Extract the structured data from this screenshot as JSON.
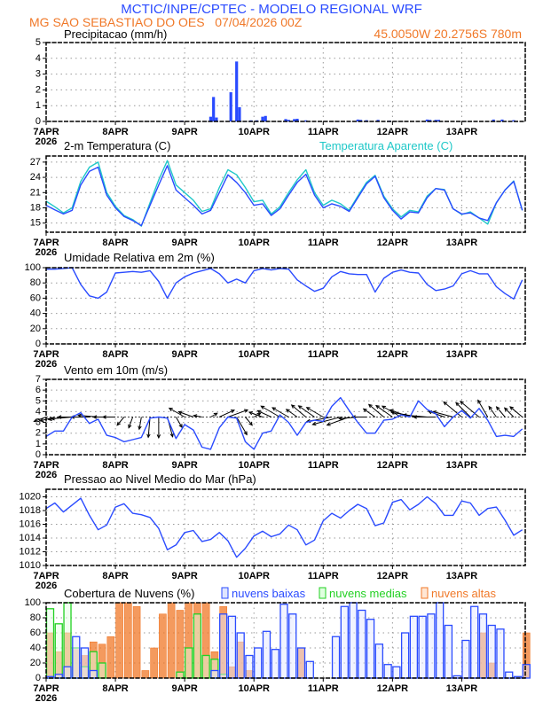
{
  "header": {
    "title": "MCTIC/INPE/CPTEC - MODELO REGIONAL WRF",
    "location_run": "MG SAO SEBASTIAO DO OES   07/04/2026 00Z",
    "coords": "45.0050W 20.2756S 780m"
  },
  "x_axis": {
    "year": "2026",
    "day_labels": [
      "7APR",
      "8APR",
      "9APR",
      "10APR",
      "11APR",
      "12APR",
      "13APR"
    ],
    "hours_range": [
      0,
      166
    ]
  },
  "colors": {
    "blue": "#2a4bff",
    "cyan": "#1fc8c8",
    "green": "#22d022",
    "orange": "#f07828"
  },
  "chart_data": [
    {
      "type": "bar",
      "title": "Precipitacao (mm/h)",
      "ylim": [
        0,
        5
      ],
      "yticks": [
        0,
        1,
        2,
        3,
        4,
        5
      ],
      "x_hours": [
        21,
        43,
        45,
        47,
        57,
        58,
        59,
        64,
        66,
        67,
        71,
        73,
        75,
        76,
        83,
        84,
        86,
        87,
        90,
        108,
        109,
        111,
        115,
        119,
        132,
        133,
        135,
        136,
        155,
        158,
        162
      ],
      "values": [
        0.02,
        0.03,
        0.05,
        0.05,
        0.3,
        1.55,
        0.25,
        1.85,
        3.8,
        0.9,
        0.07,
        0.07,
        0.3,
        0.35,
        0.15,
        0.1,
        0.15,
        0.17,
        0.07,
        0.12,
        0.1,
        0.08,
        0.1,
        0.05,
        0.12,
        0.1,
        0.1,
        0.1,
        0.12,
        0.12,
        0.08
      ]
    },
    {
      "type": "line",
      "title": "2-m Temperatura (C)",
      "legend_right": "Temperatura Aparente (C)",
      "ylim": [
        13.2,
        28.2
      ],
      "yticks": [
        15,
        18,
        21,
        24,
        27
      ],
      "x_step_hours": 3,
      "series": [
        {
          "name": "Temperatura Aparente (C)",
          "color": "cyan",
          "values": [
            19.3,
            18.2,
            17.0,
            18.0,
            23.2,
            26.0,
            27.0,
            21.0,
            18.3,
            16.5,
            15.7,
            14.4,
            19.0,
            23.5,
            27.3,
            22.5,
            21.0,
            19.5,
            17.3,
            17.8,
            22.0,
            25.5,
            24.5,
            22.0,
            19.2,
            19.5,
            16.8,
            18.2,
            21.0,
            23.5,
            25.5,
            21.0,
            18.5,
            19.5,
            18.8,
            17.5,
            20.3,
            23.0,
            24.4,
            20.3,
            17.8,
            16.2,
            17.5,
            17.2,
            20.3,
            21.8,
            21.6,
            17.8,
            16.7,
            17.2,
            16.0,
            14.8,
            19.0,
            21.5,
            23.3,
            17.5
          ]
        },
        {
          "name": "2-m Temperatura (C)",
          "color": "blue",
          "values": [
            18.5,
            17.6,
            16.8,
            17.5,
            22.5,
            25.2,
            26.0,
            20.5,
            18.0,
            16.3,
            15.5,
            14.5,
            18.5,
            22.5,
            26.3,
            21.5,
            20.0,
            18.5,
            16.8,
            17.5,
            21.0,
            24.5,
            23.0,
            21.0,
            18.5,
            18.8,
            16.5,
            17.8,
            20.5,
            23.0,
            24.6,
            20.5,
            18.0,
            18.8,
            18.3,
            17.3,
            20.0,
            22.7,
            24.2,
            20.0,
            17.5,
            15.8,
            17.2,
            17.0,
            20.0,
            21.8,
            21.5,
            17.8,
            16.8,
            17.0,
            16.0,
            15.5,
            19.0,
            21.5,
            23.2,
            17.5
          ]
        }
      ]
    },
    {
      "type": "line",
      "title": "Umidade Relativa em 2m (%)",
      "ylim": [
        0,
        100
      ],
      "yticks": [
        0,
        20,
        40,
        60,
        80,
        100
      ],
      "x_step_hours": 3,
      "series": [
        {
          "name": "Umidade Relativa",
          "color": "blue",
          "values": [
            98,
            98,
            99,
            100,
            78,
            63,
            60,
            68,
            93,
            94,
            95,
            94,
            96,
            82,
            60,
            80,
            88,
            93,
            96,
            99,
            92,
            80,
            85,
            80,
            96,
            99,
            97,
            99,
            98,
            84,
            76,
            69,
            73,
            88,
            95,
            92,
            91,
            91,
            68,
            86,
            94,
            97,
            94,
            93,
            78,
            70,
            72,
            76,
            92,
            96,
            92,
            92,
            75,
            66,
            59,
            84
          ]
        }
      ]
    },
    {
      "type": "line",
      "title": "Vento em 10m (m/s)",
      "ylim": [
        0,
        7
      ],
      "yticks": [
        0,
        1,
        2,
        3,
        4,
        5,
        6,
        7
      ],
      "x_step_hours": 3,
      "series": [
        {
          "name": "Velocidade",
          "color": "blue",
          "values": [
            1.7,
            2.2,
            2.2,
            3.5,
            3.9,
            2.9,
            3.3,
            1.8,
            1.6,
            1.2,
            1.4,
            1.6,
            3.4,
            3.5,
            3.4,
            1.5,
            2.8,
            2.3,
            0.7,
            0.5,
            2.5,
            3.5,
            3.4,
            1.2,
            0.5,
            2.0,
            2.2,
            3.7,
            3.0,
            1.8,
            3.0,
            3.2,
            3.1,
            4.5,
            5.3,
            4.1,
            3.0,
            2.0,
            2.0,
            3.2,
            3.3,
            3.7,
            3.5,
            5.0,
            4.2,
            3.8,
            2.6,
            3.5,
            4.1,
            3.4,
            4.3,
            3.2,
            1.7,
            1.8,
            1.7,
            2.4
          ]
        }
      ],
      "vectors": {
        "baseline": 3.5,
        "direction_toward_deg": [
          200,
          195,
          190,
          185,
          180,
          180,
          175,
          180,
          180,
          230,
          250,
          260,
          265,
          270,
          285,
          300,
          150,
          160,
          170,
          30,
          25,
          20,
          300,
          310,
          30,
          160,
          155,
          150,
          150,
          145,
          140,
          145,
          150,
          190,
          195,
          200,
          185,
          180,
          145,
          140,
          145,
          150,
          160,
          170,
          175,
          180,
          160,
          165,
          140,
          135,
          140,
          120,
          125,
          130,
          135,
          140
        ]
      }
    },
    {
      "type": "line",
      "title": "Pressao ao Nivel Medio do Mar (hPa)",
      "ylim": [
        1010,
        1021.1
      ],
      "yticks": [
        1010,
        1012,
        1014,
        1016,
        1018,
        1020
      ],
      "x_step_hours": 3,
      "series": [
        {
          "name": "Pressao",
          "color": "blue",
          "values": [
            1018.3,
            1019.1,
            1017.8,
            1018.8,
            1019.8,
            1017.3,
            1015.2,
            1015.9,
            1018.5,
            1019.0,
            1017.6,
            1017.4,
            1017.0,
            1015.4,
            1012.3,
            1013.0,
            1014.8,
            1015.1,
            1013.5,
            1013.8,
            1014.8,
            1013.6,
            1011.2,
            1012.5,
            1014.3,
            1015.0,
            1014.2,
            1014.6,
            1015.9,
            1015.2,
            1013.0,
            1013.7,
            1016.5,
            1017.6,
            1016.9,
            1018.0,
            1018.9,
            1018.3,
            1015.8,
            1016.2,
            1019.2,
            1019.6,
            1018.1,
            1018.9,
            1020.0,
            1019.0,
            1017.3,
            1017.3,
            1019.4,
            1019.1,
            1017.3,
            1018.3,
            1018.5,
            1016.6,
            1014.4,
            1015.2
          ]
        }
      ]
    },
    {
      "type": "bar",
      "title": "Cobertura de Nuvens (%)",
      "ylim": [
        0,
        100
      ],
      "yticks": [
        0,
        20,
        40,
        60,
        80,
        100
      ],
      "x_step_hours": 3,
      "series": [
        {
          "name": "nuvens altas",
          "color": "orange",
          "values": [
            60,
            35,
            60,
            38,
            30,
            48,
            45,
            55,
            100,
            100,
            95,
            10,
            40,
            85,
            100,
            90,
            100,
            100,
            100,
            35,
            95,
            15,
            48,
            10,
            0,
            0,
            0,
            0,
            0,
            40,
            0,
            0,
            0,
            0,
            0,
            0,
            0,
            0,
            0,
            0,
            0,
            0,
            0,
            0,
            0,
            0,
            0,
            0,
            0,
            0,
            60,
            20,
            0,
            0,
            0,
            60
          ]
        },
        {
          "name": "nuvens medias",
          "color": "green",
          "values": [
            92,
            72,
            100,
            40,
            15,
            35,
            20,
            0,
            0,
            0,
            0,
            0,
            0,
            0,
            0,
            8,
            40,
            85,
            30,
            25,
            5,
            0,
            0,
            0,
            0,
            0,
            0,
            0,
            0,
            0,
            0,
            0,
            0,
            0,
            0,
            0,
            0,
            0,
            0,
            0,
            0,
            0,
            0,
            0,
            0,
            0,
            0,
            0,
            0,
            0,
            0,
            0,
            0,
            0,
            0,
            0
          ]
        },
        {
          "name": "nuvens baixas",
          "color": "blue",
          "values": [
            2,
            5,
            15,
            55,
            40,
            10,
            0,
            0,
            0,
            0,
            0,
            0,
            0,
            0,
            0,
            0,
            0,
            0,
            0,
            10,
            85,
            82,
            60,
            30,
            40,
            62,
            38,
            98,
            85,
            40,
            22,
            0,
            0,
            55,
            95,
            100,
            90,
            78,
            45,
            18,
            15,
            60,
            82,
            82,
            85,
            100,
            70,
            3,
            50,
            95,
            85,
            70,
            65,
            8,
            2,
            18
          ]
        }
      ]
    }
  ]
}
